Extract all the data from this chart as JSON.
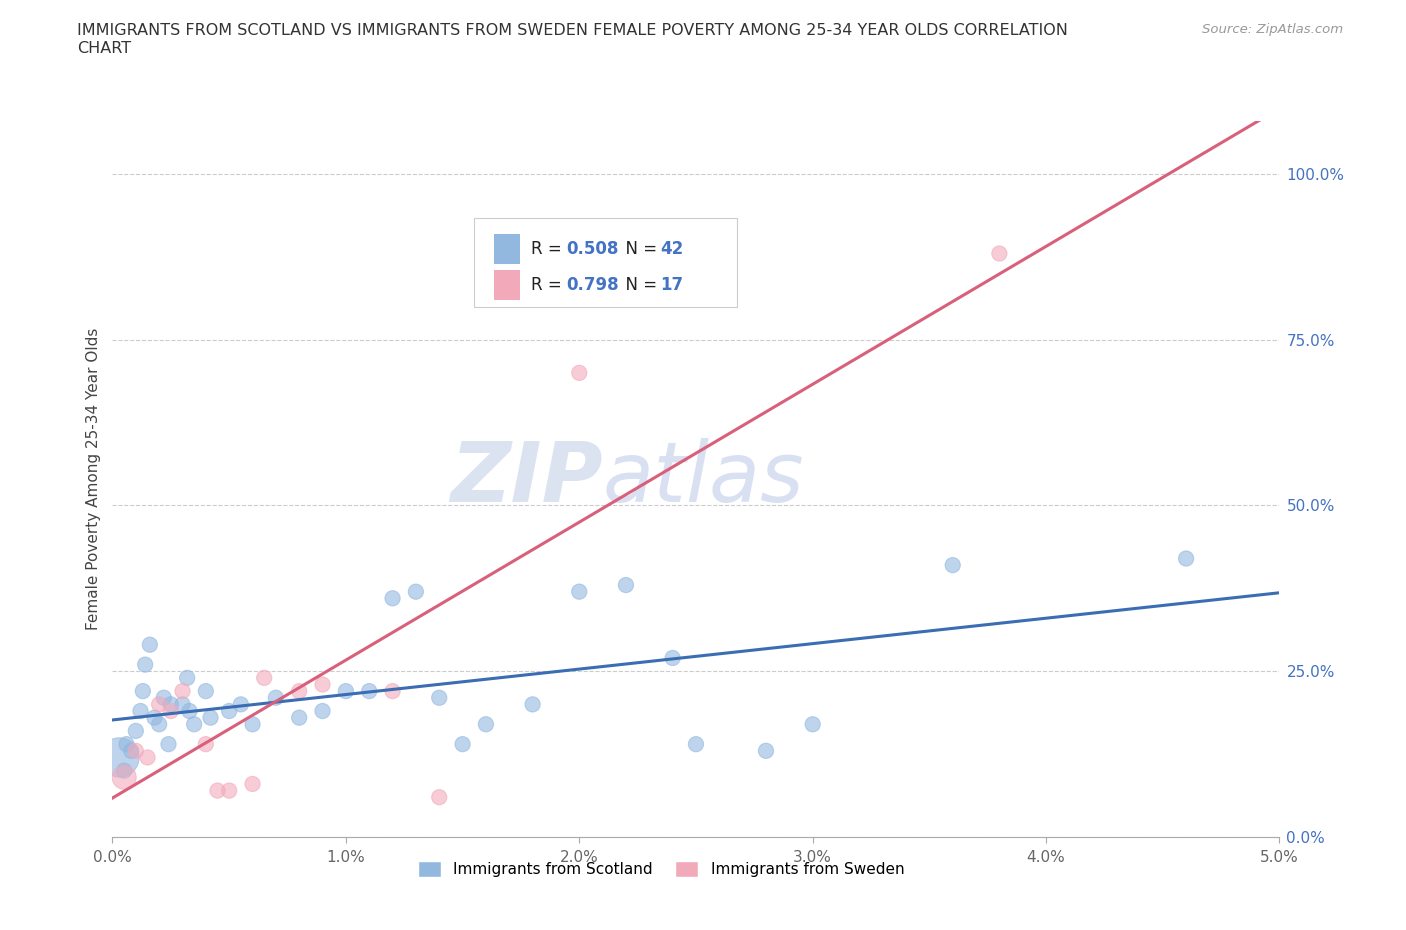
{
  "title": "IMMIGRANTS FROM SCOTLAND VS IMMIGRANTS FROM SWEDEN FEMALE POVERTY AMONG 25-34 YEAR OLDS CORRELATION\nCHART",
  "source": "Source: ZipAtlas.com",
  "ylabel": "Female Poverty Among 25-34 Year Olds",
  "xlim": [
    0.0,
    0.05
  ],
  "ylim": [
    0.0,
    1.08
  ],
  "xticks": [
    0.0,
    0.01,
    0.02,
    0.03,
    0.04,
    0.05
  ],
  "xticklabels": [
    "0.0%",
    "1.0%",
    "2.0%",
    "3.0%",
    "4.0%",
    "5.0%"
  ],
  "yticks": [
    0.0,
    0.25,
    0.5,
    0.75,
    1.0
  ],
  "yticklabels": [
    "0.0%",
    "25.0%",
    "50.0%",
    "75.0%",
    "100.0%"
  ],
  "watermark_zip": "ZIP",
  "watermark_atlas": "atlas",
  "legend_r1": "0.508",
  "legend_n1": "42",
  "legend_r2": "0.798",
  "legend_n2": "17",
  "color_scotland": "#92B8E0",
  "color_sweden": "#F2AABB",
  "line_color_scotland": "#3B6DB3",
  "line_color_sweden": "#D9607A",
  "background_color": "#ffffff",
  "grid_color": "#cccccc",
  "scotland_x": [
    0.0003,
    0.0005,
    0.0006,
    0.0008,
    0.001,
    0.0012,
    0.0013,
    0.0014,
    0.0016,
    0.0018,
    0.002,
    0.0022,
    0.0024,
    0.0025,
    0.003,
    0.0032,
    0.0033,
    0.0035,
    0.004,
    0.0042,
    0.005,
    0.0055,
    0.006,
    0.007,
    0.008,
    0.009,
    0.01,
    0.011,
    0.012,
    0.013,
    0.014,
    0.015,
    0.016,
    0.018,
    0.02,
    0.022,
    0.024,
    0.025,
    0.028,
    0.03,
    0.036,
    0.046
  ],
  "scotland_y": [
    0.12,
    0.1,
    0.14,
    0.13,
    0.16,
    0.19,
    0.22,
    0.26,
    0.29,
    0.18,
    0.17,
    0.21,
    0.14,
    0.2,
    0.2,
    0.24,
    0.19,
    0.17,
    0.22,
    0.18,
    0.19,
    0.2,
    0.17,
    0.21,
    0.18,
    0.19,
    0.22,
    0.22,
    0.36,
    0.37,
    0.21,
    0.14,
    0.17,
    0.2,
    0.37,
    0.38,
    0.27,
    0.14,
    0.13,
    0.17,
    0.41,
    0.42
  ],
  "scotland_sizes": [
    800,
    120,
    120,
    120,
    120,
    120,
    120,
    120,
    120,
    120,
    120,
    120,
    120,
    120,
    120,
    120,
    120,
    120,
    120,
    120,
    120,
    120,
    120,
    120,
    120,
    120,
    120,
    120,
    120,
    120,
    120,
    120,
    120,
    120,
    120,
    120,
    120,
    120,
    120,
    120,
    120,
    120
  ],
  "sweden_x": [
    0.0005,
    0.001,
    0.0015,
    0.002,
    0.0025,
    0.003,
    0.004,
    0.0045,
    0.005,
    0.006,
    0.0065,
    0.008,
    0.009,
    0.012,
    0.014,
    0.02,
    0.038
  ],
  "sweden_y": [
    0.09,
    0.13,
    0.12,
    0.2,
    0.19,
    0.22,
    0.14,
    0.07,
    0.07,
    0.08,
    0.24,
    0.22,
    0.23,
    0.22,
    0.06,
    0.7,
    0.88
  ],
  "sweden_sizes": [
    300,
    120,
    120,
    120,
    120,
    120,
    120,
    120,
    120,
    120,
    120,
    120,
    120,
    120,
    120,
    120,
    120
  ]
}
